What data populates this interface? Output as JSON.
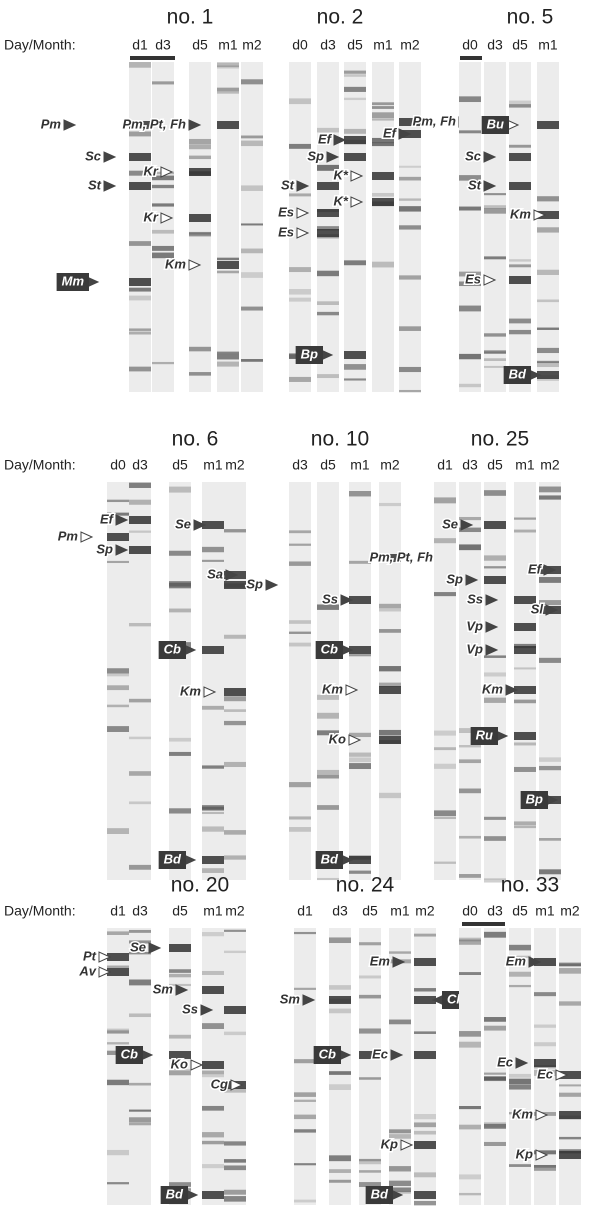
{
  "panels": [
    {
      "title": "no. 1",
      "prefix": "Day/Month:",
      "lanes": [
        "d1",
        "d3",
        "d5",
        "m1",
        "m2"
      ],
      "labels": [
        "Pm",
        "Sc",
        "St",
        "Kr",
        "Kr",
        "Mm",
        "Km",
        "Pm, Pt, Fh"
      ]
    },
    {
      "title": "no. 2",
      "lanes": [
        "d0",
        "d3",
        "d5",
        "m1",
        "m2"
      ],
      "labels": [
        "Ef",
        "Sp",
        "Ef",
        "Pm, Fh",
        "St",
        "Es",
        "Es",
        "K*",
        "K*",
        "Bp"
      ]
    },
    {
      "title": "no. 5",
      "lanes": [
        "d0",
        "d3",
        "d5",
        "m1"
      ],
      "labels": [
        "Bu",
        "Sc",
        "St",
        "Km",
        "Es",
        "Bd"
      ]
    },
    {
      "title": "no. 6",
      "prefix": "Day/Month:",
      "lanes": [
        "d0",
        "d3",
        "d5",
        "m1",
        "m2"
      ],
      "labels": [
        "Pm",
        "Ef",
        "Sp",
        "Se",
        "Sa",
        "Sp",
        "Cb",
        "Km",
        "Bd"
      ]
    },
    {
      "title": "no. 10",
      "lanes": [
        "d3",
        "d5",
        "m1",
        "m2"
      ],
      "labels": [
        "Pm, Pt, Fh",
        "Ss",
        "Cb",
        "Km",
        "Ko",
        "Bd"
      ]
    },
    {
      "title": "no. 25",
      "lanes": [
        "d1",
        "d3",
        "d5",
        "m1",
        "m2"
      ],
      "labels": [
        "Se",
        "Ef",
        "Sp",
        "Ss",
        "Sl",
        "Vp",
        "Vp",
        "Km",
        "Ru",
        "Bp"
      ]
    },
    {
      "title": "no. 20",
      "prefix": "Day/Month:",
      "lanes": [
        "d1",
        "d3",
        "d5",
        "m1",
        "m2"
      ],
      "labels": [
        "Pt",
        "Av",
        "Se",
        "Sm",
        "Ss",
        "Cb",
        "Ko",
        "Cg",
        "Bd"
      ]
    },
    {
      "title": "no. 24",
      "lanes": [
        "d1",
        "d3",
        "d5",
        "m1",
        "m2"
      ],
      "labels": [
        "Sm",
        "Em",
        "Ec",
        "Cb",
        "Ch",
        "Kp",
        "Bd"
      ]
    },
    {
      "title": "no. 33",
      "lanes": [
        "d0",
        "d3",
        "d5",
        "m1",
        "m2"
      ],
      "labels": [
        "Em",
        "Ec",
        "Ec",
        "Km",
        "Kp"
      ]
    }
  ]
}
